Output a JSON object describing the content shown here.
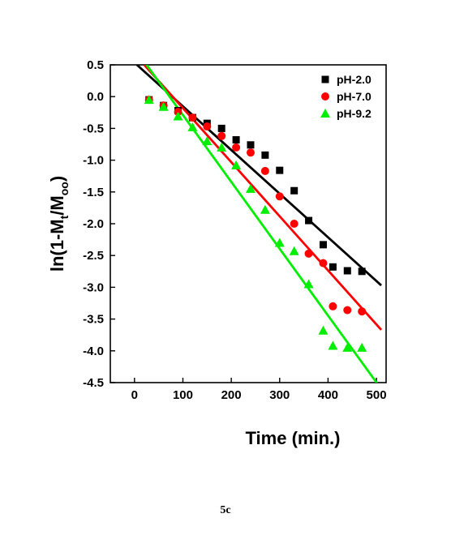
{
  "chart_data": {
    "type": "scatter",
    "title": "",
    "xlabel": "Time (min.)",
    "ylabel_parts": {
      "prefix": "ln(1-M",
      "sub1": "t",
      "mid": "/M",
      "sub2": "oo",
      "suffix": ")"
    },
    "xlim": [
      -50,
      520
    ],
    "ylim": [
      -4.5,
      0.5
    ],
    "xticks": [
      0,
      100,
      200,
      300,
      400,
      500
    ],
    "xtick_labels": [
      "0",
      "100",
      "200",
      "300",
      "400",
      "500"
    ],
    "yticks": [
      0.5,
      0.0,
      -0.5,
      -1.0,
      -1.5,
      -2.0,
      -2.5,
      -3.0,
      -3.5,
      -4.0,
      -4.5
    ],
    "ytick_labels": [
      "0.5",
      "0.0",
      "-0.5",
      "-1.0",
      "-1.5",
      "-2.0",
      "-2.5",
      "-3.0",
      "-3.5",
      "-4.0",
      "-4.5"
    ],
    "grid": false,
    "legend_position": "top-right",
    "series": [
      {
        "name": "pH-2.0",
        "marker": "square",
        "color": "#000000",
        "x": [
          30,
          60,
          90,
          120,
          150,
          180,
          210,
          240,
          270,
          300,
          330,
          360,
          390,
          410,
          440,
          470
        ],
        "y": [
          -0.05,
          -0.14,
          -0.22,
          -0.33,
          -0.42,
          -0.5,
          -0.68,
          -0.76,
          -0.92,
          -1.16,
          -1.48,
          -1.95,
          -2.33,
          -2.68,
          -2.74,
          -2.75
        ],
        "fit": {
          "x": [
            5,
            510
          ],
          "y": [
            0.5,
            -2.97
          ]
        }
      },
      {
        "name": "pH-7.0",
        "marker": "circle",
        "color": "#ff0000",
        "x": [
          30,
          60,
          90,
          120,
          150,
          180,
          210,
          240,
          270,
          300,
          330,
          360,
          390,
          410,
          440,
          470
        ],
        "y": [
          -0.05,
          -0.14,
          -0.24,
          -0.33,
          -0.47,
          -0.62,
          -0.8,
          -0.88,
          -1.17,
          -1.57,
          -2.0,
          -2.47,
          -2.62,
          -3.3,
          -3.36,
          -3.38
        ],
        "fit": {
          "x": [
            20,
            510
          ],
          "y": [
            0.5,
            -3.67
          ]
        }
      },
      {
        "name": "pH-9.2",
        "marker": "triangle",
        "color": "#00ee00",
        "x": [
          30,
          60,
          90,
          120,
          150,
          180,
          210,
          240,
          270,
          300,
          330,
          360,
          390,
          410,
          440,
          470
        ],
        "y": [
          -0.05,
          -0.16,
          -0.31,
          -0.48,
          -0.7,
          -0.8,
          -1.08,
          -1.45,
          -1.78,
          -2.3,
          -2.43,
          -2.95,
          -3.68,
          -3.92,
          -3.95,
          -3.95
        ],
        "fit": {
          "x": [
            25,
            505
          ],
          "y": [
            0.5,
            -4.55
          ]
        }
      }
    ]
  },
  "caption": "5c"
}
